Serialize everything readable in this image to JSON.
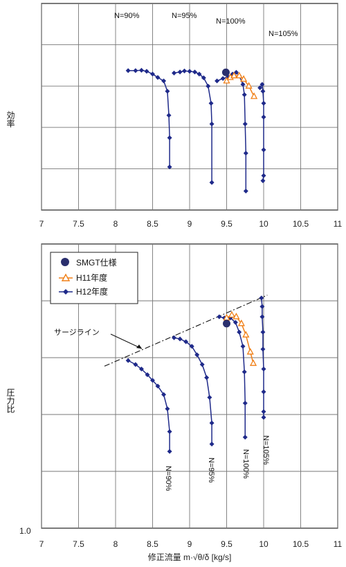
{
  "chart_data": [
    {
      "type": "line",
      "ylabel": "効率",
      "xlim": [
        7,
        11
      ],
      "xticks": [
        7,
        7.5,
        8,
        8.5,
        9,
        9.5,
        10,
        10.5,
        11
      ],
      "xtick_labels": [
        "7",
        "7.5",
        "8",
        "8.5",
        "9",
        "9.5",
        "10",
        "10.5",
        "11"
      ],
      "y_unlabeled_range": [
        0,
        6
      ],
      "grid": true,
      "annotations": [
        "N=90%",
        "N=95%",
        "N=100%",
        "N=105%"
      ],
      "series": [
        {
          "marker": "diamond",
          "color": "#1f2a8a",
          "points": [
            [
              8.17,
              4.05
            ],
            [
              8.27,
              4.05
            ],
            [
              8.35,
              4.06
            ],
            [
              8.42,
              4.03
            ],
            [
              8.5,
              3.95
            ],
            [
              8.57,
              3.85
            ],
            [
              8.65,
              3.75
            ],
            [
              8.7,
              3.45
            ],
            [
              8.72,
              2.75
            ],
            [
              8.73,
              2.1
            ],
            [
              8.73,
              1.25
            ]
          ]
        },
        {
          "marker": "diamond",
          "color": "#1f2a8a",
          "points": [
            [
              8.79,
              3.98
            ],
            [
              8.87,
              4.01
            ],
            [
              8.93,
              4.04
            ],
            [
              9.0,
              4.03
            ],
            [
              9.07,
              4.01
            ],
            [
              9.13,
              3.95
            ],
            [
              9.19,
              3.84
            ],
            [
              9.25,
              3.6
            ],
            [
              9.29,
              3.1
            ],
            [
              9.3,
              2.5
            ],
            [
              9.3,
              0.8
            ]
          ]
        },
        {
          "marker": "diamond",
          "color": "#1f2a8a",
          "points": [
            [
              9.37,
              3.75
            ],
            [
              9.45,
              3.82
            ],
            [
              9.52,
              3.87
            ],
            [
              9.58,
              3.95
            ],
            [
              9.63,
              4.0
            ],
            [
              9.67,
              3.9
            ],
            [
              9.72,
              3.65
            ],
            [
              9.74,
              3.35
            ],
            [
              9.75,
              2.5
            ],
            [
              9.76,
              1.65
            ],
            [
              9.76,
              0.55
            ]
          ]
        },
        {
          "marker": "diamond",
          "color": "#1f2a8a",
          "points": [
            [
              9.95,
              3.55
            ],
            [
              9.98,
              3.65
            ],
            [
              9.99,
              3.45
            ],
            [
              10.0,
              3.1
            ],
            [
              10.0,
              2.7
            ],
            [
              10.0,
              1.75
            ],
            [
              10.0,
              1.0
            ],
            [
              9.99,
              0.85
            ]
          ]
        },
        {
          "marker": "triangle",
          "color": "#f07f16",
          "points": [
            [
              9.5,
              3.75
            ],
            [
              9.55,
              3.85
            ],
            [
              9.6,
              3.9
            ],
            [
              9.67,
              3.9
            ],
            [
              9.73,
              3.8
            ],
            [
              9.8,
              3.6
            ],
            [
              9.87,
              3.3
            ]
          ]
        },
        {
          "marker": "circle",
          "color": "#2a2f6e",
          "points": [
            [
              9.49,
              4.0
            ]
          ]
        }
      ]
    },
    {
      "type": "line",
      "ylabel": "圧力比",
      "xlabel": "修正流量 m·√θ/δ [kg/s]",
      "xlim": [
        7,
        11
      ],
      "xticks": [
        7,
        7.5,
        8,
        8.5,
        9,
        9.5,
        10,
        10.5,
        11
      ],
      "xtick_labels": [
        "7",
        "7.5",
        "8",
        "8.5",
        "9",
        "9.5",
        "10",
        "10.5",
        "11"
      ],
      "ylim": [
        0,
        5
      ],
      "ytick_labels": [
        "1.0"
      ],
      "grid": true,
      "legend": {
        "placement": "top-left",
        "entries": [
          "SMGT仕様",
          "H11年度",
          "H12年度"
        ]
      },
      "annotations": [
        "サージライン",
        "N=90%",
        "N=95%",
        "N=100%",
        "N=105%"
      ],
      "surge_line": [
        [
          7.85,
          2.85
        ],
        [
          10.05,
          4.1
        ]
      ],
      "series": [
        {
          "name": "H12年度",
          "marker": "diamond",
          "color": "#1f2a8a",
          "points": [
            [
              8.17,
              2.95
            ],
            [
              8.27,
              2.88
            ],
            [
              8.35,
              2.8
            ],
            [
              8.43,
              2.7
            ],
            [
              8.5,
              2.6
            ],
            [
              8.57,
              2.5
            ],
            [
              8.65,
              2.35
            ],
            [
              8.7,
              2.1
            ],
            [
              8.73,
              1.7
            ],
            [
              8.73,
              1.35
            ]
          ]
        },
        {
          "name": "H12年度",
          "marker": "diamond",
          "color": "#1f2a8a",
          "points": [
            [
              8.79,
              3.35
            ],
            [
              8.87,
              3.33
            ],
            [
              8.95,
              3.28
            ],
            [
              9.03,
              3.2
            ],
            [
              9.1,
              3.05
            ],
            [
              9.17,
              2.88
            ],
            [
              9.23,
              2.65
            ],
            [
              9.27,
              2.3
            ],
            [
              9.3,
              1.85
            ],
            [
              9.3,
              1.48
            ]
          ]
        },
        {
          "name": "H12年度",
          "marker": "diamond",
          "color": "#1f2a8a",
          "points": [
            [
              9.4,
              3.72
            ],
            [
              9.47,
              3.7
            ],
            [
              9.55,
              3.7
            ],
            [
              9.62,
              3.62
            ],
            [
              9.67,
              3.45
            ],
            [
              9.72,
              3.2
            ],
            [
              9.74,
              2.75
            ],
            [
              9.75,
              2.2
            ],
            [
              9.75,
              1.6
            ]
          ]
        },
        {
          "name": "H12年度",
          "marker": "diamond",
          "color": "#1f2a8a",
          "points": [
            [
              9.97,
              4.05
            ],
            [
              9.98,
              3.9
            ],
            [
              9.98,
              3.72
            ],
            [
              9.99,
              3.45
            ],
            [
              9.99,
              3.15
            ],
            [
              10.0,
              2.8
            ],
            [
              10.0,
              2.4
            ],
            [
              10.0,
              2.05
            ],
            [
              10.0,
              1.95
            ]
          ]
        },
        {
          "name": "H11年度",
          "marker": "triangle",
          "color": "#f07f16",
          "points": [
            [
              9.5,
              3.7
            ],
            [
              9.57,
              3.75
            ],
            [
              9.63,
              3.72
            ],
            [
              9.7,
              3.6
            ],
            [
              9.76,
              3.4
            ],
            [
              9.82,
              3.1
            ],
            [
              9.86,
              2.9
            ]
          ]
        },
        {
          "name": "SMGT仕様",
          "marker": "circle",
          "color": "#2a2f6e",
          "points": [
            [
              9.5,
              3.6
            ]
          ]
        }
      ]
    }
  ]
}
